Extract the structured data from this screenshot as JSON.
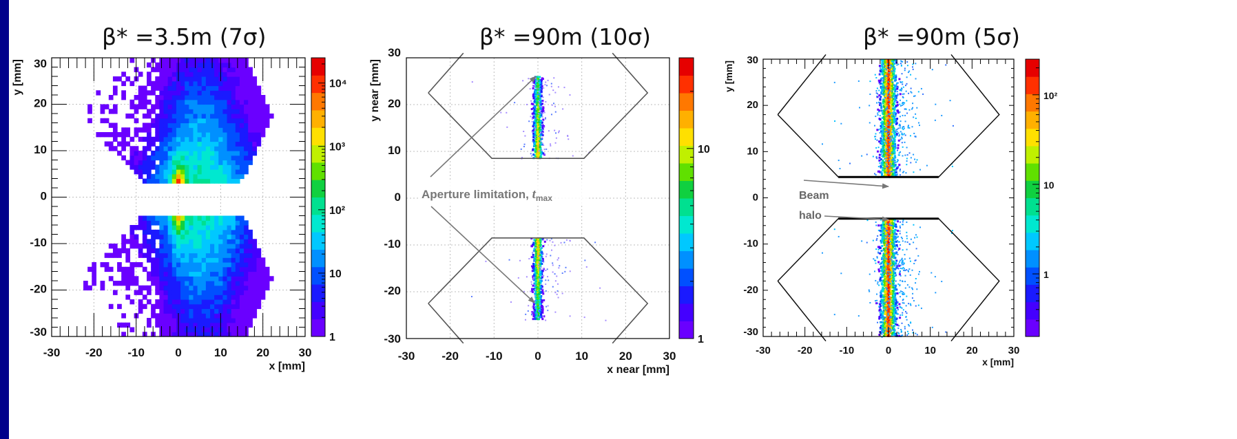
{
  "chart_data": [
    {
      "type": "heatmap",
      "title": "β* =3.5m (7σ)",
      "xlabel": "x [mm]",
      "ylabel": "y [mm]",
      "xlim": [
        -30,
        30
      ],
      "ylim": [
        -30,
        30
      ],
      "x_ticks": [
        "-30",
        "-20",
        "-10",
        "0",
        "10",
        "20",
        "30"
      ],
      "y_ticks": [
        "-30",
        "-20",
        "-10",
        "0",
        "10",
        "20",
        "30"
      ],
      "grid": true,
      "color_scale": "log",
      "colorbar_range": [
        1,
        25000
      ],
      "colorbar_labels": [
        "1",
        "10",
        "10²",
        "10³",
        "10⁴"
      ],
      "acceptance_upper": [
        [
          -24,
          17.5
        ],
        [
          -13,
          30
        ],
        [
          16,
          30
        ],
        [
          22.5,
          17.5
        ],
        [
          15,
          3.5
        ],
        [
          -8,
          3.5
        ]
      ],
      "acceptance_lower": [
        [
          -24,
          -17.5
        ],
        [
          -13,
          -30
        ],
        [
          16,
          -30
        ],
        [
          22.5,
          -17.5
        ],
        [
          15,
          -3.5
        ],
        [
          -8,
          -3.5
        ]
      ]
    },
    {
      "type": "heatmap",
      "title": "β* =90m (10σ)",
      "xlabel": "x near [mm]",
      "ylabel": "y near [mm]",
      "xlim": [
        -30,
        30
      ],
      "ylim": [
        -30,
        30
      ],
      "x_ticks": [
        "-30",
        "-20",
        "-10",
        "0",
        "10",
        "20",
        "30"
      ],
      "y_ticks": [
        "-30",
        "-20",
        "-10",
        "0",
        "10",
        "20",
        "30"
      ],
      "grid": true,
      "color_scale": "log",
      "colorbar_range": [
        1,
        30
      ],
      "colorbar_labels": [
        "1",
        "10"
      ],
      "aperture_upper": [
        [
          -25,
          22.5
        ],
        [
          -10.5,
          8.5
        ],
        [
          10.5,
          8.5
        ],
        [
          25,
          22.5
        ],
        [
          17,
          31
        ]
      ],
      "aperture_lower": [
        [
          -25,
          -22.5
        ],
        [
          -10.5,
          -8.5
        ],
        [
          10.5,
          -8.5
        ],
        [
          25,
          -22.5
        ],
        [
          17,
          -31
        ]
      ],
      "band": {
        "x": 0,
        "y_abs_min": 8.5,
        "y_abs_max": 26
      },
      "annotations": [
        {
          "text": "Aperture limitation,",
          "symbol": "t",
          "subscript": "max"
        }
      ]
    },
    {
      "type": "heatmap",
      "title": "β* =90m (5σ)",
      "xlabel": "x [mm]",
      "ylabel": "y [mm]",
      "xlim": [
        -30,
        30
      ],
      "ylim": [
        -30,
        30
      ],
      "x_ticks": [
        "-30",
        "-20",
        "-10",
        "0",
        "10",
        "20",
        "30"
      ],
      "y_ticks": [
        "-30",
        "-20",
        "-10",
        "0",
        "10",
        "20",
        "30"
      ],
      "grid": false,
      "color_scale": "log",
      "colorbar_range": [
        0.2,
        250
      ],
      "colorbar_labels": [
        "1",
        "10",
        "10²"
      ],
      "aperture_upper": [
        [
          -26.5,
          18
        ],
        [
          -12,
          4.5
        ],
        [
          12,
          4.5
        ],
        [
          26.5,
          18
        ],
        [
          15,
          31
        ]
      ],
      "aperture_lower": [
        [
          -26.5,
          -18
        ],
        [
          -12,
          -4.5
        ],
        [
          12,
          -4.5
        ],
        [
          26.5,
          -18
        ],
        [
          15,
          -31
        ]
      ],
      "band": {
        "x": 0,
        "y_abs_min": 4.5,
        "y_abs_max": 30
      },
      "annotations": [
        {
          "text": "Beam"
        },
        {
          "text": "halo"
        }
      ]
    }
  ]
}
